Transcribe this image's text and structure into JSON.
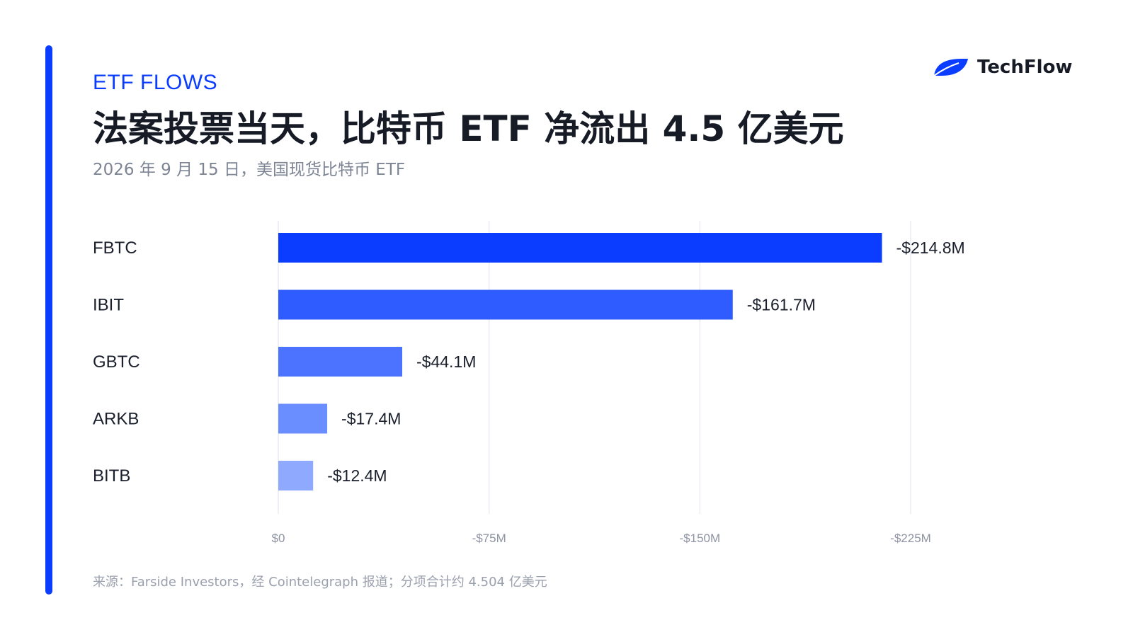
{
  "kicker": "ETF FLOWS",
  "title": "法案投票当天，比特币 ETF 净流出 4.5 亿美元",
  "subtitle": "2026 年 9 月 15 日，美国现货比特币 ETF",
  "brand": {
    "name": "TechFlow",
    "logo_icon": "leaf-logo-icon"
  },
  "footer": "来源：Farside Investors，经 Cointelegraph 报道；分项合计约 4.504 亿美元",
  "colors": {
    "accent": "#0a3dff",
    "bars": [
      "#0a3dff",
      "#2f5cff",
      "#4b73ff",
      "#6a8dff",
      "#8fa9ff"
    ],
    "grid": "#e9ecf2",
    "tick_text": "#8d93a1"
  },
  "chart_data": {
    "type": "bar",
    "orientation": "horizontal",
    "categories": [
      "FBTC",
      "IBIT",
      "GBTC",
      "ARKB",
      "BITB"
    ],
    "values": [
      -214.8,
      -161.7,
      -44.1,
      -17.4,
      -12.4
    ],
    "value_labels": [
      "-$214.8M",
      "-$161.7M",
      "-$44.1M",
      "-$17.4M",
      "-$12.4M"
    ],
    "x_ticks": [
      0,
      -75,
      -150,
      -225
    ],
    "x_tick_labels": [
      "$0",
      "-$75M",
      "-$150M",
      "-$225M"
    ],
    "xlim": [
      0,
      -225
    ],
    "unit": "USD millions",
    "grid": true
  }
}
